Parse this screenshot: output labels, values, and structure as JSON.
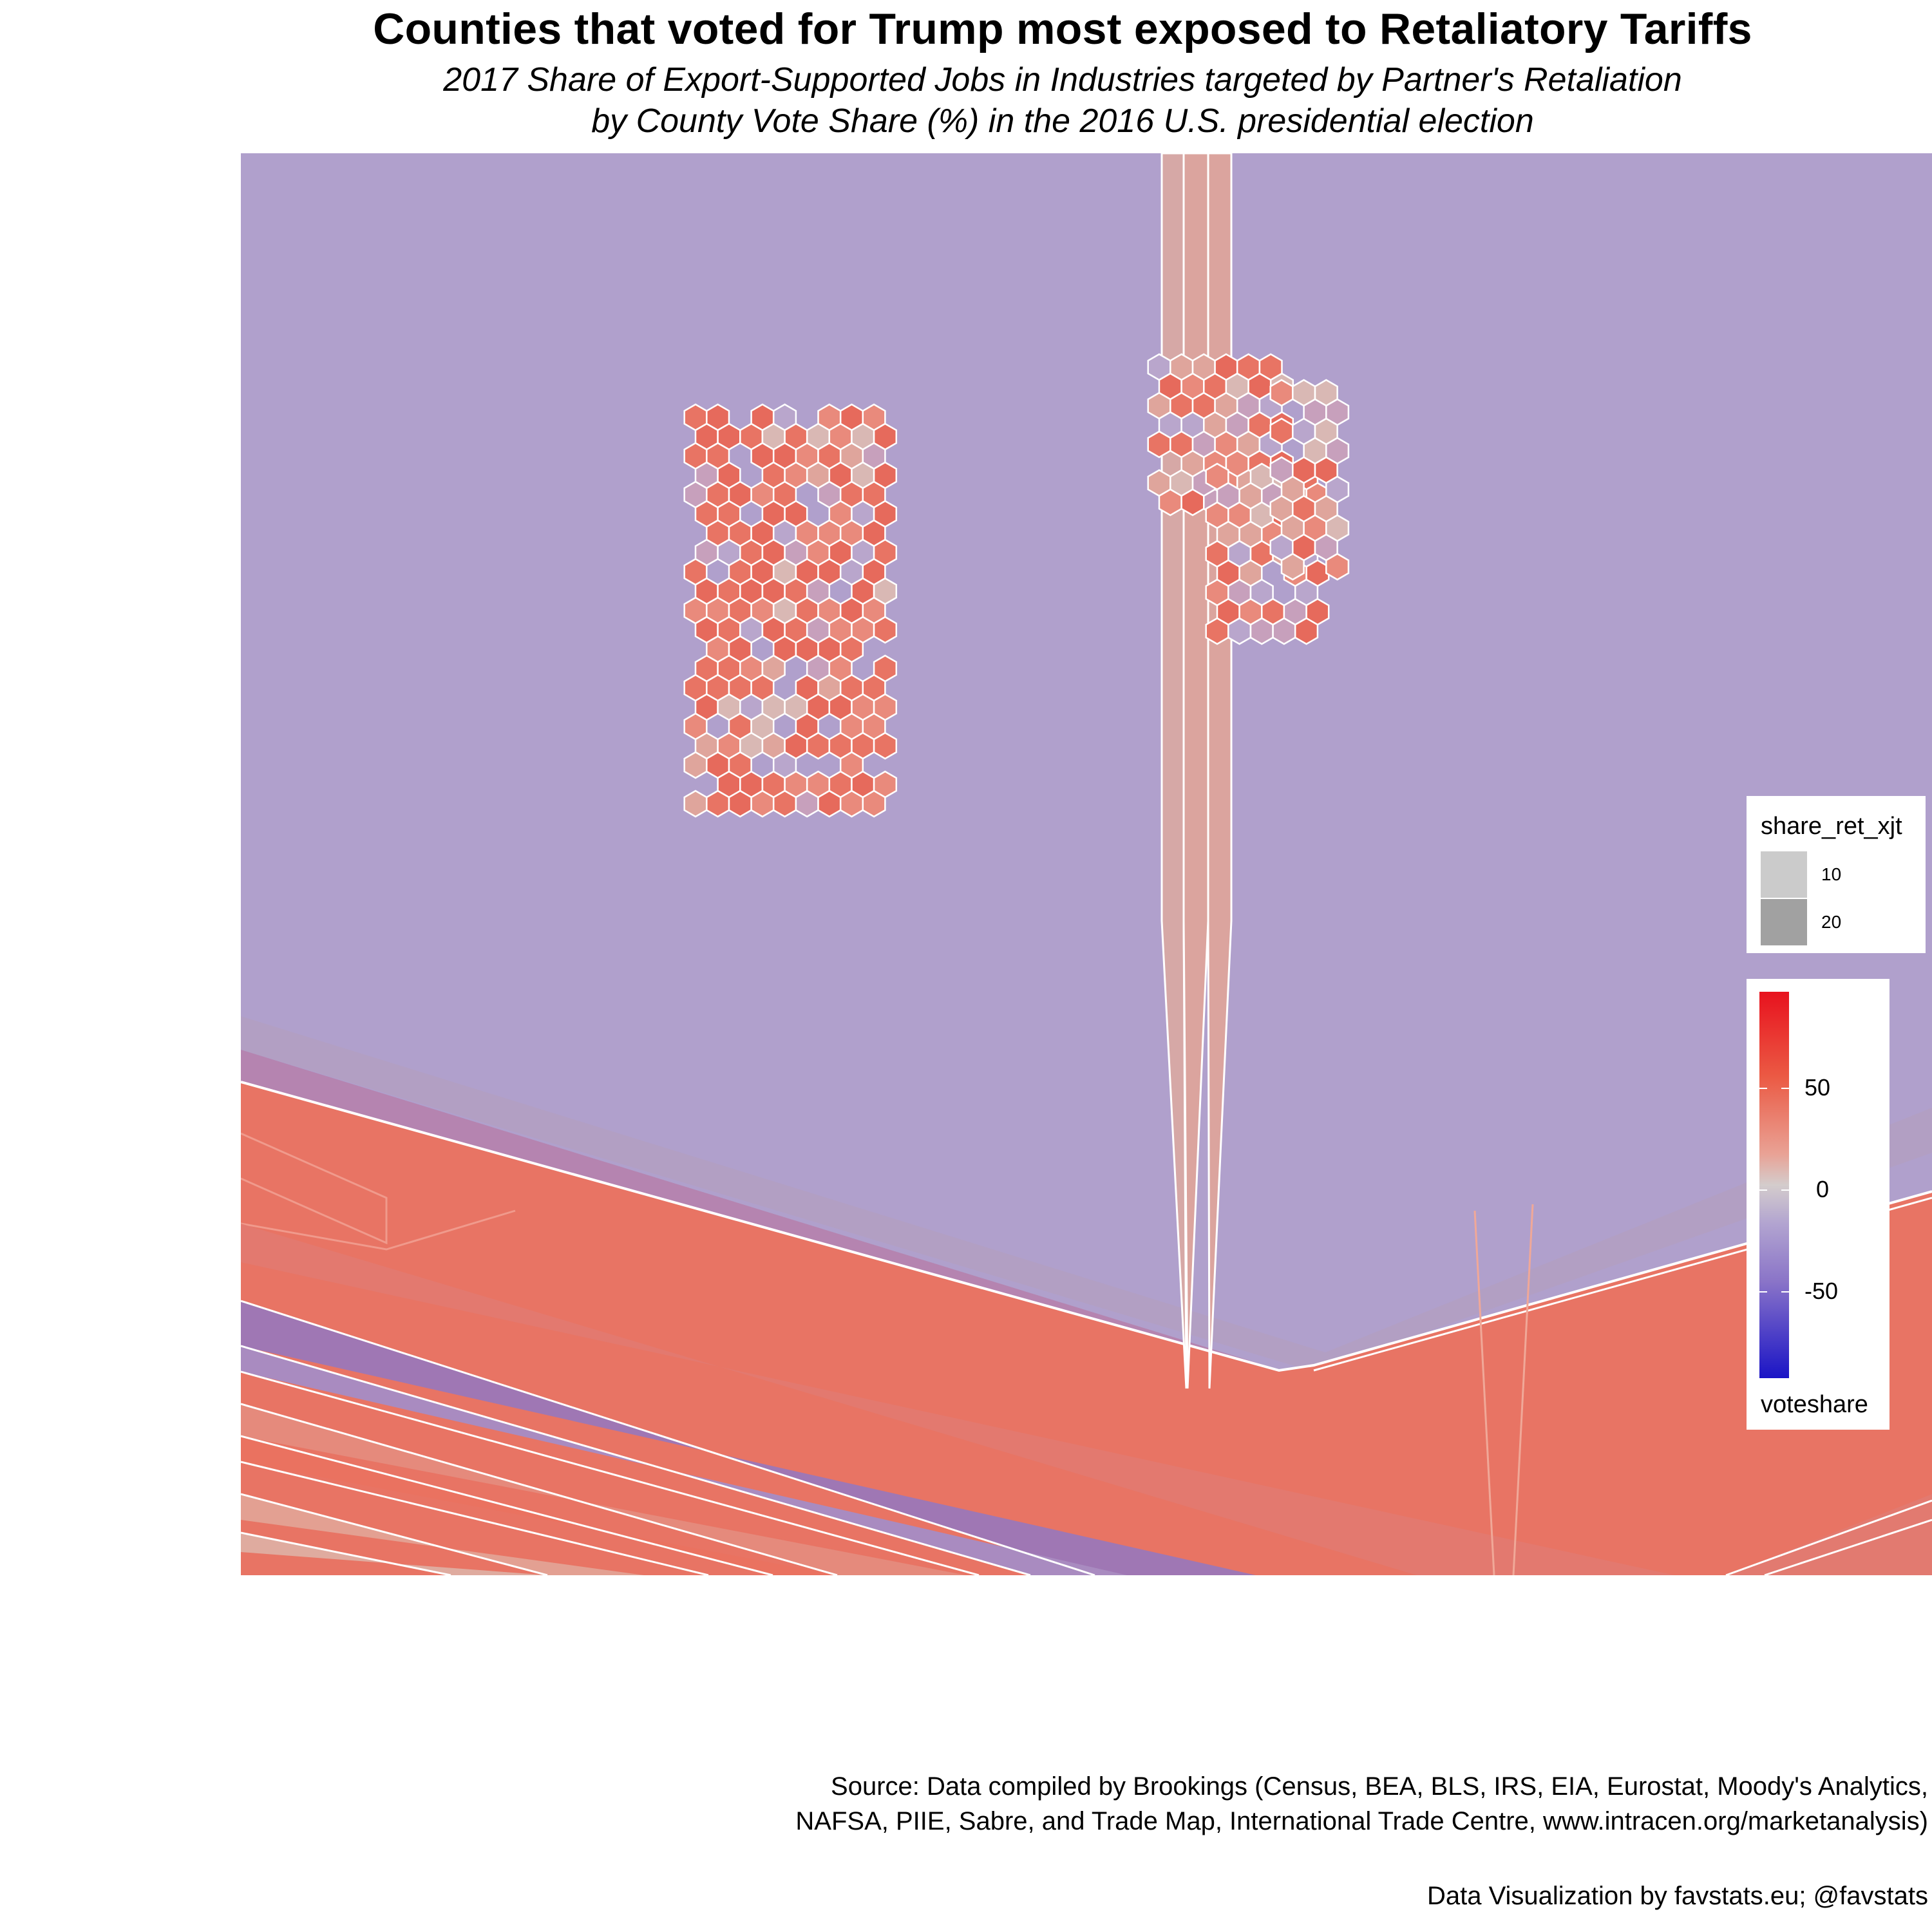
{
  "title": "Counties that voted for Trump most exposed to Retaliatory Tariffs",
  "subtitle_line1": "2017 Share of Export-Supported Jobs in Industries targeted by Partner's Retaliation",
  "subtitle_line2": "by County Vote Share (%) in the 2016 U.S. presidential election",
  "caption_line1": "Source: Data compiled by Brookings (Census, BEA, BLS, IRS, EIA, Eurostat, Moody's Analytics,",
  "caption_line2": "NAFSA, PIIE, Sabre, and Trade Map, International Trade Centre, www.intracen.org/marketanalysis)",
  "caption_line3": "Data Visualization by favstats.eu; @favstats",
  "legend_size": {
    "title": "share_ret_xjt",
    "items": [
      {
        "label": "10",
        "color": "#cbcbcb"
      },
      {
        "label": "20",
        "color": "#a1a1a1"
      }
    ]
  },
  "legend_color": {
    "title": "voteshare",
    "ticks": [
      "50",
      "0",
      "-50"
    ],
    "colors": {
      "high": "#e8121e",
      "mid": "#d4cccc",
      "low": "#1a14c6"
    }
  },
  "colors": {
    "background_purple": "#b0a0cc",
    "republican_red": "#e87464",
    "neutral_pink": "#dfada4",
    "border_white": "#ffffff"
  }
}
